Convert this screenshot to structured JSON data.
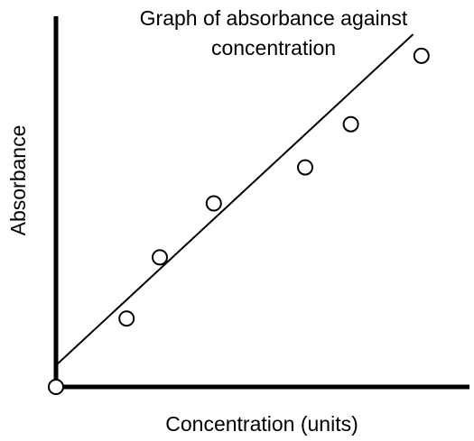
{
  "chart_data": {
    "type": "scatter",
    "title": "Graph of absorbance against concentration",
    "title_lines": [
      "Graph of absorbance against",
      "concentration"
    ],
    "xlabel": "Concentration (units)",
    "ylabel": "Absorbance",
    "grid": false,
    "legend": "none",
    "xlim": [
      0,
      100
    ],
    "ylim": [
      0,
      100
    ],
    "x_ticks": "none",
    "y_ticks": "none",
    "series": [
      {
        "points": [
          {
            "x": 0,
            "y": 0
          },
          {
            "x": 17,
            "y": 19
          },
          {
            "x": 25,
            "y": 36
          },
          {
            "x": 38,
            "y": 51
          },
          {
            "x": 60,
            "y": 61
          },
          {
            "x": 71,
            "y": 73
          },
          {
            "x": 88,
            "y": 92
          }
        ]
      }
    ],
    "trendline": {
      "from": {
        "x": 0,
        "y": 6
      },
      "to": {
        "x": 86,
        "y": 98
      }
    },
    "colors": {
      "axis": "#000000",
      "line": "#000000",
      "marker_stroke": "#000000",
      "marker_fill": "#ffffff"
    }
  }
}
